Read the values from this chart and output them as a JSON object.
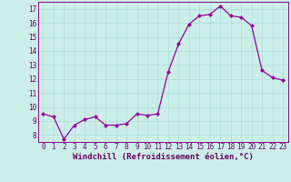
{
  "x": [
    0,
    1,
    2,
    3,
    4,
    5,
    6,
    7,
    8,
    9,
    10,
    11,
    12,
    13,
    14,
    15,
    16,
    17,
    18,
    19,
    20,
    21,
    22,
    23
  ],
  "y": [
    9.5,
    9.3,
    7.7,
    8.7,
    9.1,
    9.3,
    8.7,
    8.7,
    8.8,
    9.5,
    9.4,
    9.5,
    12.5,
    14.5,
    15.9,
    16.5,
    16.6,
    17.2,
    16.5,
    16.4,
    15.8,
    12.6,
    12.1,
    11.9
  ],
  "line_color": "#990099",
  "marker": "D",
  "marker_size": 2.0,
  "line_width": 0.9,
  "xlabel": "Windchill (Refroidissement éolien,°C)",
  "xlabel_fontsize": 6.5,
  "xlabel_color": "#660066",
  "ylabel_ticks": [
    8,
    9,
    10,
    11,
    12,
    13,
    14,
    15,
    16,
    17
  ],
  "ylim": [
    7.5,
    17.5
  ],
  "xlim": [
    -0.5,
    23.5
  ],
  "xticks": [
    0,
    1,
    2,
    3,
    4,
    5,
    6,
    7,
    8,
    9,
    10,
    11,
    12,
    13,
    14,
    15,
    16,
    17,
    18,
    19,
    20,
    21,
    22,
    23
  ],
  "tick_fontsize": 5.5,
  "tick_color": "#660066",
  "grid_color": "#aadddd",
  "bg_color": "#cceee8",
  "spine_color": "#880088"
}
